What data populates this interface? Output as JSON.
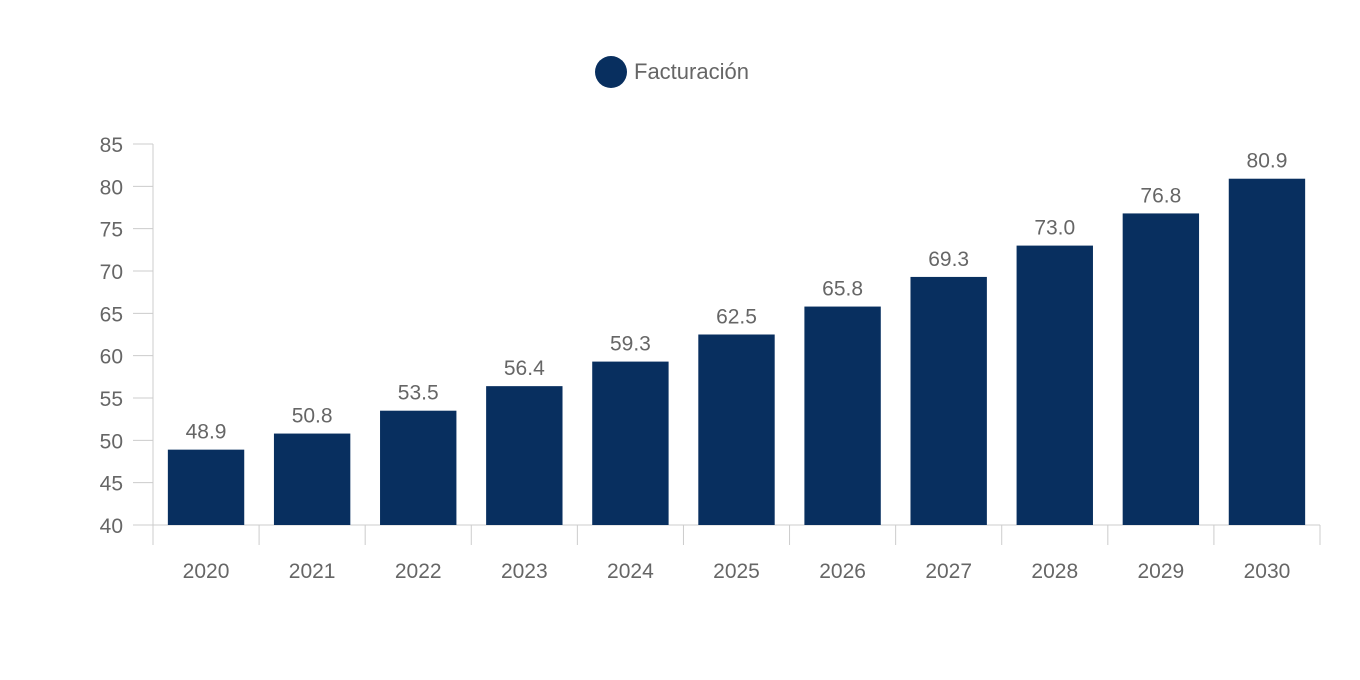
{
  "chart_data": {
    "type": "bar",
    "title": "",
    "xlabel": "",
    "ylabel": "",
    "categories": [
      "2020",
      "2021",
      "2022",
      "2023",
      "2024",
      "2025",
      "2026",
      "2027",
      "2028",
      "2029",
      "2030"
    ],
    "series": [
      {
        "name": "Facturación",
        "color": "#082f5f",
        "values": [
          48.9,
          50.8,
          53.5,
          56.4,
          59.3,
          62.5,
          65.8,
          69.3,
          73.0,
          76.8,
          80.9
        ],
        "data_labels": [
          "48.9",
          "50.8",
          "53.5",
          "56.4",
          "59.3",
          "62.5",
          "65.8",
          "69.3",
          "73.0",
          "76.8",
          "80.9"
        ]
      }
    ],
    "ylim": [
      40,
      85
    ],
    "yticks": [
      40,
      45,
      50,
      55,
      60,
      65,
      70,
      75,
      80,
      85
    ],
    "grid": false,
    "legend_position": "top-center",
    "colors": {
      "axis": "#cccccc",
      "text": "#666666"
    }
  }
}
